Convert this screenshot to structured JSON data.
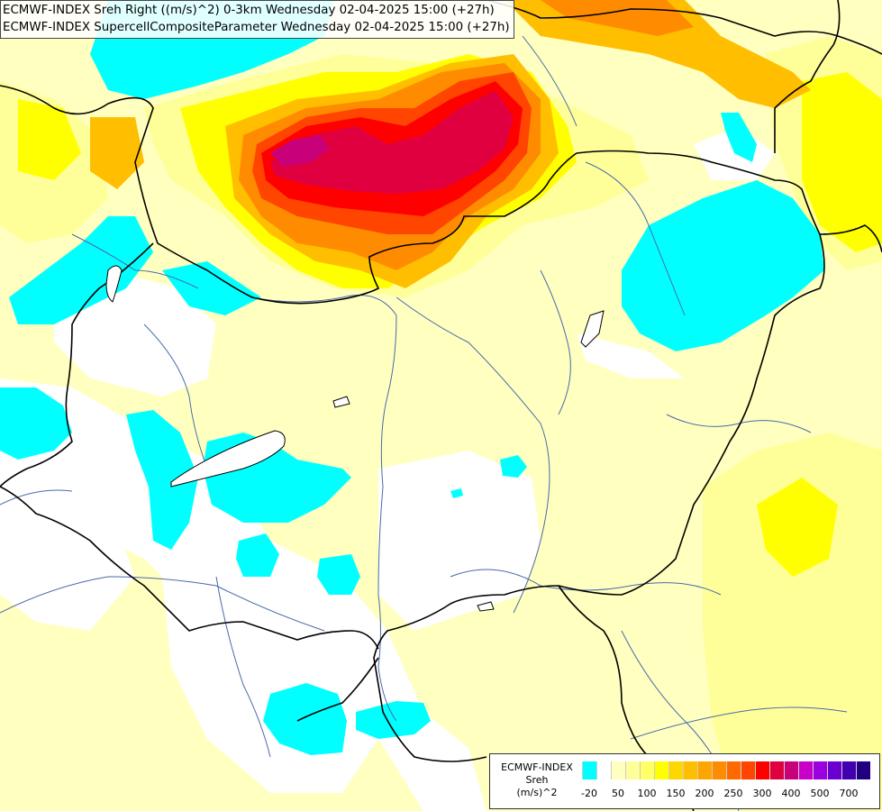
{
  "title": {
    "line1": "ECMWF-INDEX Sreh Right ((m/s)^2) 0-3km Wednesday 02-04-2025 15:00 (+27h)",
    "line2": "ECMWF-INDEX SupercellCompositeParameter Wednesday 02-04-2025 15:00 (+27h)"
  },
  "legend": {
    "line1": "ECMWF-INDEX",
    "line2": "Sreh",
    "line3": "(m/s)^2",
    "colors": [
      "#00ffff",
      "#ffffff",
      "#ffffc0",
      "#ffff99",
      "#ffff66",
      "#ffff00",
      "#ffd700",
      "#ffbf00",
      "#ffa500",
      "#ff8c00",
      "#ff6a00",
      "#ff4500",
      "#ff0000",
      "#e00040",
      "#c8007a",
      "#c800c8",
      "#9a00e0",
      "#6a00d0",
      "#4000b0",
      "#200080"
    ],
    "ticks": [
      "-20",
      "50",
      "100",
      "150",
      "200",
      "250",
      "300",
      "400",
      "500",
      "700"
    ]
  },
  "palette": {
    "cyan": "#00ffff",
    "pale_yellow": "#ffffc0",
    "light_yellow": "#ffff99",
    "yellow": "#ffff00",
    "gold": "#ffd700",
    "orange": "#ffa500",
    "dark_orange": "#ff7000",
    "red_orange": "#ff4500",
    "red": "#ff0000",
    "crimson": "#e00040",
    "magenta": "#c8007a",
    "border": "#000000",
    "river": "#4a6aa8"
  }
}
